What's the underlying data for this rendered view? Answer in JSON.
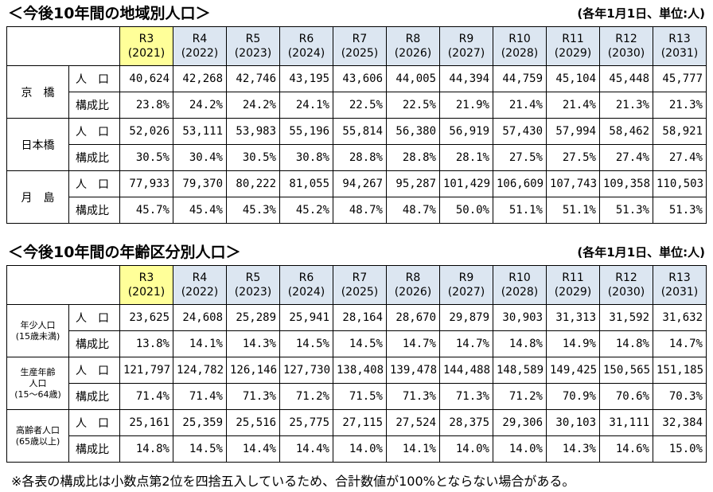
{
  "table1": {
    "title": "＜今後10年間の地域別人口＞",
    "note": "(各年1月1日、単位:人)",
    "headers": [
      {
        "label": "R3",
        "year": "(2021)"
      },
      {
        "label": "R4",
        "year": "(2022)"
      },
      {
        "label": "R5",
        "year": "(2023)"
      },
      {
        "label": "R6",
        "year": "(2024)"
      },
      {
        "label": "R7",
        "year": "(2025)"
      },
      {
        "label": "R8",
        "year": "(2026)"
      },
      {
        "label": "R9",
        "year": "(2027)"
      },
      {
        "label": "R10",
        "year": "(2028)"
      },
      {
        "label": "R11",
        "year": "(2029)"
      },
      {
        "label": "R12",
        "year": "(2030)"
      },
      {
        "label": "R13",
        "year": "(2031)"
      }
    ],
    "groups": [
      {
        "name": [
          "京　橋"
        ],
        "rows": [
          {
            "label": "人　口",
            "values": [
              "40,624",
              "42,268",
              "42,746",
              "43,195",
              "43,606",
              "44,005",
              "44,394",
              "44,759",
              "45,104",
              "45,448",
              "45,777"
            ]
          },
          {
            "label": "構成比",
            "values": [
              "23.8%",
              "24.2%",
              "24.2%",
              "24.1%",
              "22.5%",
              "22.5%",
              "21.9%",
              "21.4%",
              "21.4%",
              "21.3%",
              "21.3%"
            ]
          }
        ]
      },
      {
        "name": [
          "日本橋"
        ],
        "rows": [
          {
            "label": "人　口",
            "values": [
              "52,026",
              "53,111",
              "53,983",
              "55,196",
              "55,814",
              "56,380",
              "56,919",
              "57,430",
              "57,994",
              "58,462",
              "58,921"
            ]
          },
          {
            "label": "構成比",
            "values": [
              "30.5%",
              "30.4%",
              "30.5%",
              "30.8%",
              "28.8%",
              "28.8%",
              "28.1%",
              "27.5%",
              "27.5%",
              "27.4%",
              "27.4%"
            ]
          }
        ]
      },
      {
        "name": [
          "月　島"
        ],
        "rows": [
          {
            "label": "人　口",
            "values": [
              "77,933",
              "79,370",
              "80,222",
              "81,055",
              "94,267",
              "95,287",
              "101,429",
              "106,609",
              "107,743",
              "109,358",
              "110,503"
            ]
          },
          {
            "label": "構成比",
            "values": [
              "45.7%",
              "45.4%",
              "45.3%",
              "45.2%",
              "48.7%",
              "48.7%",
              "50.0%",
              "51.1%",
              "51.1%",
              "51.3%",
              "51.3%"
            ]
          }
        ]
      }
    ]
  },
  "table2": {
    "title": "＜今後10年間の年齢区分別人口＞",
    "note": "(各年1月1日、単位:人)",
    "headers": [
      {
        "label": "R3",
        "year": "(2021)"
      },
      {
        "label": "R4",
        "year": "(2022)"
      },
      {
        "label": "R5",
        "year": "(2023)"
      },
      {
        "label": "R6",
        "year": "(2024)"
      },
      {
        "label": "R7",
        "year": "(2025)"
      },
      {
        "label": "R8",
        "year": "(2026)"
      },
      {
        "label": "R9",
        "year": "(2027)"
      },
      {
        "label": "R10",
        "year": "(2028)"
      },
      {
        "label": "R11",
        "year": "(2029)"
      },
      {
        "label": "R12",
        "year": "(2030)"
      },
      {
        "label": "R13",
        "year": "(2031)"
      }
    ],
    "groups": [
      {
        "name": [
          "年少人口",
          "(15歳未満)"
        ],
        "rows": [
          {
            "label": "人　口",
            "values": [
              "23,625",
              "24,608",
              "25,289",
              "25,941",
              "28,164",
              "28,670",
              "29,879",
              "30,903",
              "31,313",
              "31,592",
              "31,632"
            ]
          },
          {
            "label": "構成比",
            "values": [
              "13.8%",
              "14.1%",
              "14.3%",
              "14.5%",
              "14.5%",
              "14.7%",
              "14.7%",
              "14.8%",
              "14.9%",
              "14.8%",
              "14.7%"
            ]
          }
        ]
      },
      {
        "name": [
          "生産年齢",
          "人口",
          "(15～64歳)"
        ],
        "rows": [
          {
            "label": "人　口",
            "values": [
              "121,797",
              "124,782",
              "126,146",
              "127,730",
              "138,408",
              "139,478",
              "144,488",
              "148,589",
              "149,425",
              "150,565",
              "151,185"
            ]
          },
          {
            "label": "構成比",
            "values": [
              "71.4%",
              "71.4%",
              "71.3%",
              "71.2%",
              "71.5%",
              "71.3%",
              "71.3%",
              "71.2%",
              "70.9%",
              "70.6%",
              "70.3%"
            ]
          }
        ]
      },
      {
        "name": [
          "高齢者人口",
          "(65歳以上)"
        ],
        "rows": [
          {
            "label": "人　口",
            "values": [
              "25,161",
              "25,359",
              "25,516",
              "25,775",
              "27,115",
              "27,524",
              "28,375",
              "29,306",
              "30,103",
              "31,111",
              "32,384"
            ]
          },
          {
            "label": "構成比",
            "values": [
              "14.8%",
              "14.5%",
              "14.4%",
              "14.4%",
              "14.0%",
              "14.1%",
              "14.0%",
              "14.0%",
              "14.3%",
              "14.6%",
              "15.0%"
            ]
          }
        ]
      }
    ]
  },
  "footnote": "※各表の構成比は小数点第2位を四捨五入しているため、合計数値が100%とならない場合がある。"
}
